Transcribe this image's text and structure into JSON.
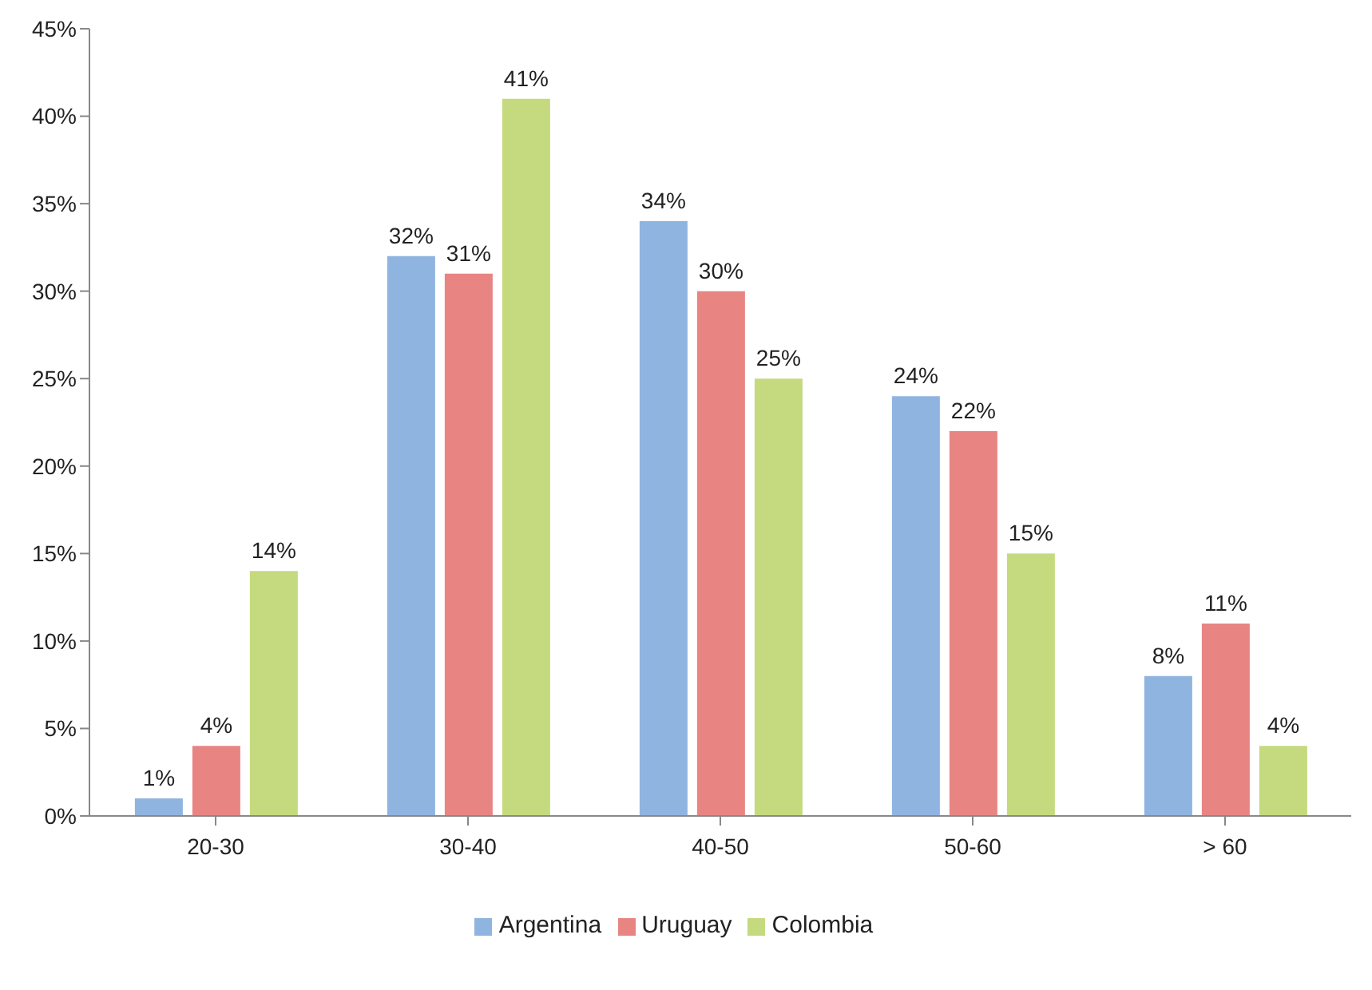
{
  "chart_data": {
    "type": "bar",
    "categories": [
      "20-30",
      "30-40",
      "40-50",
      "50-60",
      "> 60"
    ],
    "series": [
      {
        "name": "Argentina",
        "color": "#8fb4e0",
        "values": [
          1,
          32,
          34,
          24,
          8
        ],
        "value_labels": [
          "1%",
          "32%",
          "34%",
          "24%",
          "8%"
        ]
      },
      {
        "name": "Uruguay",
        "color": "#e88583",
        "values": [
          4,
          31,
          30,
          22,
          11
        ],
        "value_labels": [
          "4%",
          "31%",
          "30%",
          "22%",
          "11%"
        ]
      },
      {
        "name": "Colombia",
        "color": "#c5da7e",
        "values": [
          14,
          41,
          25,
          15,
          4
        ],
        "value_labels": [
          "14%",
          "41%",
          "25%",
          "15%",
          "4%"
        ]
      }
    ],
    "ylim": [
      0,
      45
    ],
    "yticks": [
      {
        "value": 0,
        "label": "0%"
      },
      {
        "value": 5,
        "label": "5%"
      },
      {
        "value": 10,
        "label": "10%"
      },
      {
        "value": 15,
        "label": "15%"
      },
      {
        "value": 20,
        "label": "20%"
      },
      {
        "value": 25,
        "label": "25%"
      },
      {
        "value": 30,
        "label": "30%"
      },
      {
        "value": 35,
        "label": "35%"
      },
      {
        "value": 40,
        "label": "40%"
      },
      {
        "value": 45,
        "label": "45%"
      }
    ],
    "grid": false,
    "legend": "bottom"
  }
}
